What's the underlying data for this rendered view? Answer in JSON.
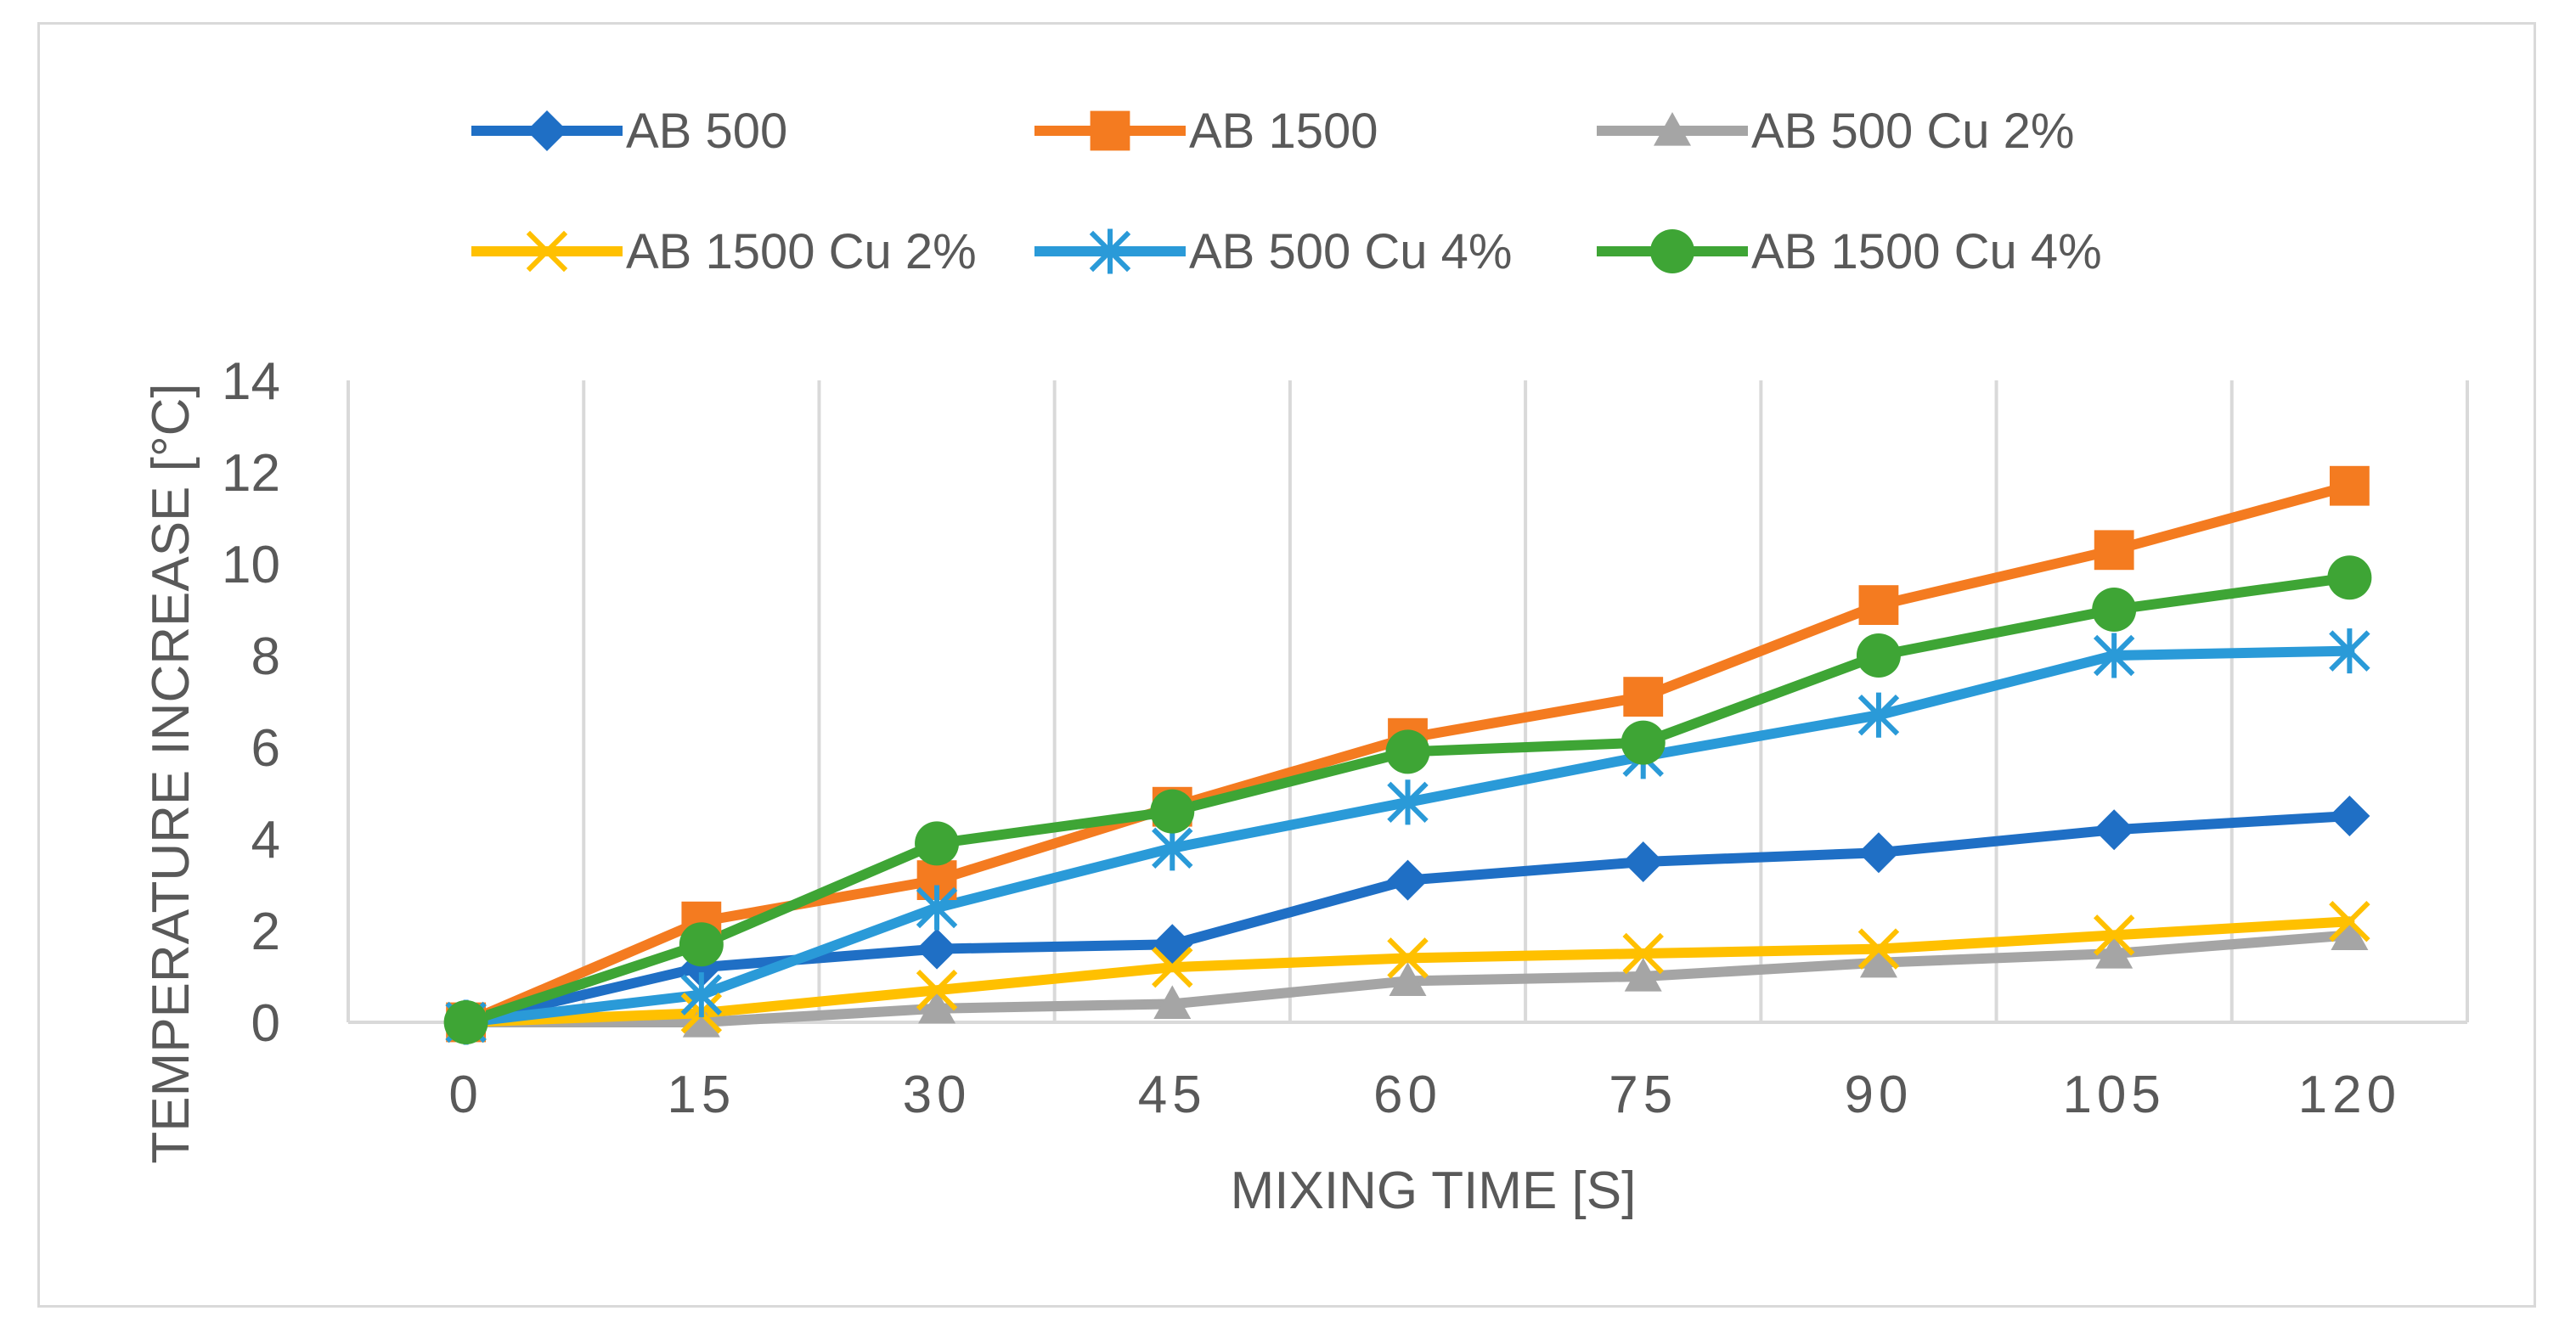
{
  "chart_data": {
    "type": "line",
    "title": "",
    "xlabel": "MIXING TIME [S]",
    "ylabel": "TEMPERATURE INCREASE [°C]",
    "categories": [
      "0",
      "15",
      "30",
      "45",
      "60",
      "75",
      "90",
      "105",
      "120"
    ],
    "ylim": [
      0,
      14
    ],
    "yticks": [
      0,
      2,
      4,
      6,
      8,
      10,
      12,
      14
    ],
    "grid": "vertical",
    "legend_position": "top",
    "series": [
      {
        "name": "AB 500",
        "color": "#1f6fc5",
        "marker": "diamond",
        "values": [
          0,
          1.2,
          1.6,
          1.7,
          3.1,
          3.5,
          3.7,
          4.2,
          4.5
        ]
      },
      {
        "name": "AB 1500",
        "color": "#f47b20",
        "marker": "square",
        "values": [
          0,
          2.2,
          3.1,
          4.7,
          6.2,
          7.1,
          9.1,
          10.3,
          11.7
        ]
      },
      {
        "name": "AB 500 Cu 2%",
        "color": "#a5a5a5",
        "marker": "triangle",
        "values": [
          0,
          0,
          0.3,
          0.4,
          0.9,
          1.0,
          1.3,
          1.5,
          1.9
        ]
      },
      {
        "name": "AB 1500 Cu 2%",
        "color": "#ffc000",
        "marker": "x",
        "values": [
          0,
          0.2,
          0.7,
          1.2,
          1.4,
          1.5,
          1.6,
          1.9,
          2.2
        ]
      },
      {
        "name": "AB 500 Cu 4%",
        "color": "#2a9ad8",
        "marker": "asterisk",
        "values": [
          0,
          0.6,
          2.5,
          3.8,
          4.8,
          5.8,
          6.7,
          8.0,
          8.1
        ]
      },
      {
        "name": "AB 1500 Cu 4%",
        "color": "#3ea535",
        "marker": "circle",
        "values": [
          0,
          1.7,
          3.9,
          4.6,
          5.9,
          6.1,
          8.0,
          9.0,
          9.7
        ]
      }
    ]
  }
}
